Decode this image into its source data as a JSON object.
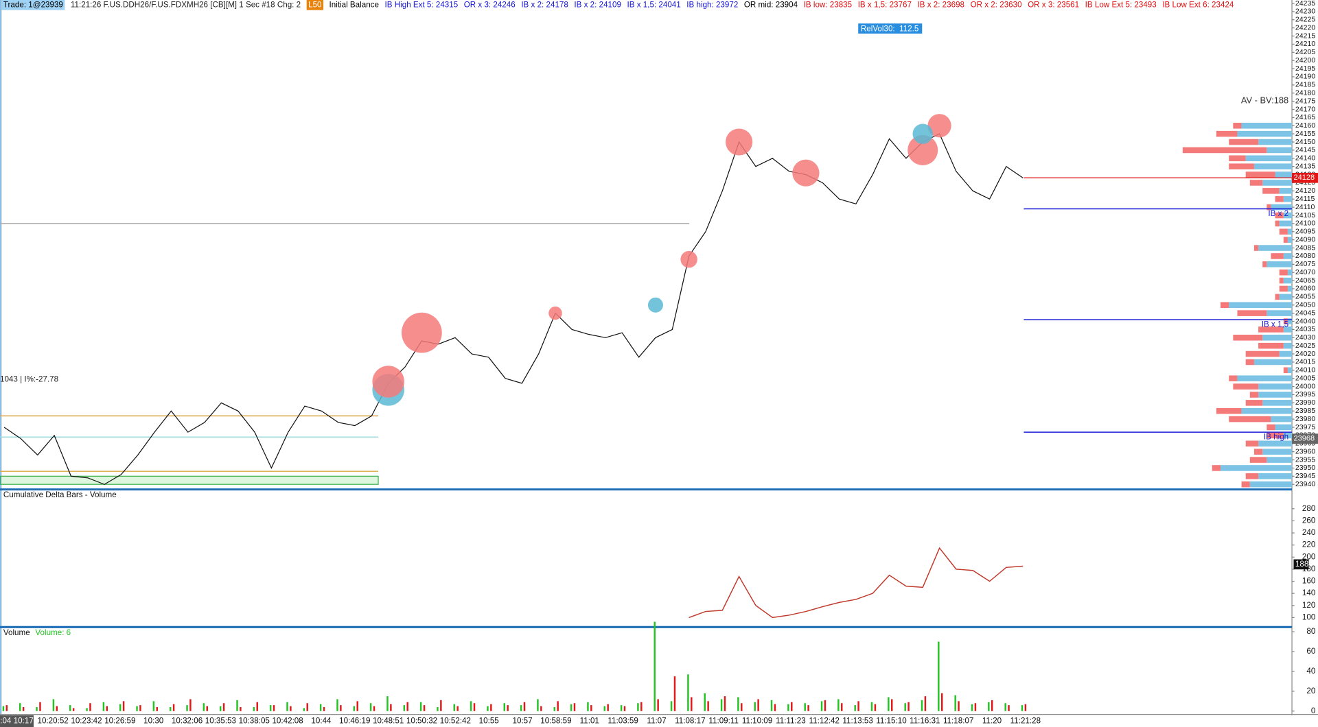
{
  "header": {
    "items": [
      {
        "text": "Trade: 1@23939",
        "color": "#000",
        "bg": "#9fd3f5"
      },
      {
        "text": "11:21:26 F.US.DDH26/F.US.FDXMH26 [CB][M]  1 Sec  #18  Chg: 2",
        "color": "#222"
      },
      {
        "text": "L50",
        "color": "#fff",
        "bg": "#e8840c"
      },
      {
        "text": "Initial Balance",
        "color": "#000"
      },
      {
        "text": "IB High Ext 5: 24315",
        "color": "#1515d4"
      },
      {
        "text": "OR x 3: 24246",
        "color": "#1515d4"
      },
      {
        "text": "IB x 2: 24178",
        "color": "#1515d4"
      },
      {
        "text": "IB x 2: 24109",
        "color": "#1515d4"
      },
      {
        "text": "IB x 1,5: 24041",
        "color": "#1515d4"
      },
      {
        "text": "IB high: 23972",
        "color": "#1515d4"
      },
      {
        "text": "OR mid: 23904",
        "color": "#000"
      },
      {
        "text": "IB low: 23835",
        "color": "#e01010"
      },
      {
        "text": "IB x 1,5: 23767",
        "color": "#e01010"
      },
      {
        "text": "IB x 2: 23698",
        "color": "#e01010"
      },
      {
        "text": "OR x 2: 23630",
        "color": "#e01010"
      },
      {
        "text": "OR x 3: 23561",
        "color": "#e01010"
      },
      {
        "text": "IB Low Ext 5: 23493",
        "color": "#e01010"
      },
      {
        "text": "IB Low Ext 6: 23424",
        "color": "#e01010"
      }
    ]
  },
  "relvol": {
    "label": "RelVol30:",
    "value": 112.5
  },
  "av_bv": "AV - BV:188",
  "left_note": "1043 | I%:-27.78",
  "price_pane": {
    "ylim": [
      23937.4,
      24237.1
    ],
    "yticks": [
      23940,
      23945,
      23950,
      23955,
      23960,
      23965,
      23970,
      23975,
      23980,
      23985,
      23990,
      23995,
      24000,
      24005,
      24010,
      24015,
      24020,
      24025,
      24030,
      24035,
      24040,
      24045,
      24050,
      24055,
      24060,
      24065,
      24070,
      24075,
      24080,
      24085,
      24090,
      24095,
      24100,
      24105,
      24110,
      24115,
      24120,
      24125,
      24130,
      24135,
      24140,
      24145,
      24150,
      24155,
      24160,
      24165,
      24170,
      24175,
      24180,
      24185,
      24190,
      24195,
      24200,
      24205,
      24210,
      24215,
      24220,
      24225,
      24230,
      24235
    ],
    "color": "#111",
    "values": [
      23975,
      23968,
      23958,
      23970,
      23945,
      23944,
      23940,
      23946,
      23958,
      23972,
      23985,
      23972,
      23978,
      23990,
      23985,
      23972,
      23950,
      23972,
      23988,
      23985,
      23978,
      23976,
      23982,
      24002,
      24012,
      24028,
      24026,
      24030,
      24020,
      24018,
      24005,
      24002,
      24020,
      24045,
      24035,
      24032,
      24030,
      24033,
      24018,
      24030,
      24035,
      24080,
      24095,
      24120,
      24150,
      24135,
      24140,
      24132,
      24130,
      24125,
      24115,
      24112,
      24130,
      24152,
      24140,
      24150,
      24155,
      24132,
      24120,
      24115,
      24135,
      24128
    ],
    "bubbles": {
      "index": [
        25,
        23,
        23,
        44,
        48,
        56,
        55,
        55,
        41,
        39,
        33
      ],
      "price": [
        24033,
        23998,
        24003,
        24150,
        24131,
        24160,
        24145,
        24155,
        24078,
        24050,
        24045
      ],
      "size": [
        24,
        19,
        19,
        16,
        16,
        14,
        18,
        12,
        10,
        9,
        8
      ],
      "colors": [
        "#f47a7a",
        "#5bb8d4",
        "#f47a7a",
        "#f47a7a",
        "#f47a7a",
        "#f47a7a",
        "#f47a7a",
        "#5bb8d4",
        "#f47a7a",
        "#5bb8d4",
        "#f47a7a"
      ]
    },
    "ref_lines": [
      {
        "value": 24100,
        "color": "#aaaaaa"
      },
      {
        "value": 23982,
        "color": "#d9a441"
      },
      {
        "value": 23969,
        "color": "#9fdadf"
      },
      {
        "value": 23948,
        "color": "#d9a441"
      }
    ],
    "zone": [
      23940,
      23945
    ],
    "levels": [
      {
        "label": "IB x 2",
        "value": 24109
      },
      {
        "label": "IB x 1,5",
        "value": 24041
      },
      {
        "label": "IB high",
        "value": 23972
      }
    ],
    "level_color": "#1a1ad8",
    "last_price": 24128,
    "marker_price": 23968,
    "profile": {
      "prices": [
        24160,
        24155,
        24150,
        24145,
        24140,
        24135,
        24130,
        24125,
        24120,
        24115,
        24110,
        24105,
        24100,
        24095,
        24090,
        24085,
        24080,
        24075,
        24070,
        24065,
        24060,
        24055,
        24050,
        24045,
        24040,
        24035,
        24030,
        24025,
        24020,
        24015,
        24010,
        24005,
        24000,
        23995,
        23990,
        23985,
        23980,
        23975,
        23970,
        23965,
        23960,
        23955,
        23950,
        23945,
        23940
      ],
      "blue_values": [
        60,
        65,
        40,
        30,
        55,
        45,
        20,
        35,
        15,
        10,
        25,
        10,
        15,
        5,
        5,
        40,
        10,
        30,
        5,
        10,
        5,
        15,
        75,
        30,
        5,
        10,
        35,
        10,
        15,
        45,
        5,
        65,
        40,
        40,
        35,
        60,
        25,
        20,
        10,
        40,
        35,
        30,
        85,
        40,
        50
      ],
      "red_values": [
        10,
        25,
        35,
        100,
        20,
        30,
        35,
        15,
        20,
        10,
        5,
        10,
        5,
        10,
        5,
        5,
        15,
        5,
        10,
        5,
        10,
        5,
        10,
        35,
        5,
        30,
        35,
        30,
        40,
        10,
        5,
        10,
        30,
        10,
        20,
        30,
        50,
        10,
        20,
        15,
        10,
        20,
        10,
        15,
        10
      ],
      "blue_color": "#7cc3e6",
      "red_color": "#f47a7a"
    }
  },
  "delta_pane": {
    "title": "Cumulative Delta Bars - Volume",
    "ylim": [
      85.6,
      307.8
    ],
    "yticks": [
      100,
      120,
      140,
      160,
      180,
      200,
      220,
      240,
      260,
      280
    ],
    "color": "#c0392b",
    "values": [
      null,
      null,
      null,
      null,
      null,
      null,
      null,
      null,
      null,
      null,
      null,
      null,
      null,
      null,
      null,
      null,
      null,
      null,
      null,
      null,
      null,
      null,
      null,
      null,
      null,
      null,
      null,
      null,
      null,
      null,
      null,
      null,
      null,
      null,
      null,
      null,
      null,
      null,
      null,
      null,
      null,
      100,
      110,
      112,
      168,
      120,
      100,
      104,
      110,
      118,
      125,
      130,
      140,
      170,
      152,
      150,
      215,
      180,
      178,
      160,
      183,
      185
    ],
    "last": 188
  },
  "volume_pane": {
    "title": "Volume",
    "subtitle": "Volume: 6",
    "ylim": [
      -2.5,
      82.1
    ],
    "yticks": [
      0,
      20,
      40,
      60,
      80
    ],
    "up_color": "#22c322",
    "down_color": "#e01818",
    "up": [
      5,
      8,
      4,
      12,
      6,
      3,
      9,
      7,
      5,
      10,
      4,
      6,
      8,
      5,
      11,
      4,
      6,
      9,
      3,
      7,
      12,
      5,
      8,
      15,
      6,
      9,
      4,
      7,
      10,
      5,
      8,
      6,
      12,
      4,
      7,
      9,
      5,
      6,
      8,
      90,
      10,
      37,
      18,
      12,
      14,
      9,
      11,
      7,
      8,
      10,
      12,
      6,
      9,
      14,
      8,
      11,
      70,
      16,
      7,
      9,
      8,
      6
    ],
    "down": [
      6,
      4,
      9,
      5,
      3,
      8,
      5,
      10,
      6,
      4,
      7,
      12,
      5,
      8,
      4,
      9,
      6,
      5,
      8,
      4,
      6,
      10,
      5,
      7,
      9,
      6,
      11,
      5,
      8,
      7,
      6,
      9,
      5,
      10,
      8,
      6,
      7,
      5,
      9,
      12,
      35,
      14,
      10,
      15,
      8,
      12,
      7,
      9,
      6,
      11,
      8,
      10,
      7,
      12,
      9,
      15,
      18,
      10,
      8,
      11,
      6,
      7
    ]
  },
  "time_axis": {
    "labels": [
      ":04 10:17",
      "10:20:52",
      "10:23:42",
      "10:26:59",
      "10:30",
      "10:32:06",
      "10:35:53",
      "10:38:05",
      "10:42:08",
      "10:44",
      "10:46:19",
      "10:48:51",
      "10:50:32",
      "10:52:42",
      "10:55",
      "10:57",
      "10:58:59",
      "11:01",
      "11:03:59",
      "11:07",
      "11:08:17",
      "11:09:11",
      "11:10:09",
      "11:11:23",
      "11:12:42",
      "11:13:53",
      "11:15:10",
      "11:16:31",
      "11:18:07",
      "11:20",
      "11:21:28"
    ]
  }
}
